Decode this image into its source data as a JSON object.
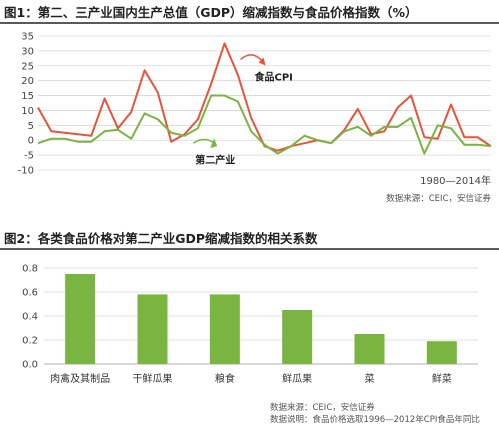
{
  "figure1": {
    "title": "图1：第二、三产业国内生产总值（GDP）缩减指数与食品价格指数（%）",
    "source": "数据来源：CEIC，安信证券"
  },
  "figure2": {
    "title": "图2：各类食品价格对第二产业GDP缩减指数的相关系数",
    "source": "数据来源：CEIC，安信证券",
    "note": "数据说明：食品价格选取1996—2012年CPI食品年同比"
  },
  "chart_data": [
    {
      "type": "line",
      "title": "第二、三产业国内生产总值（GDP）缩减指数与食品价格指数（%）",
      "x": [
        1980,
        1981,
        1982,
        1983,
        1984,
        1985,
        1986,
        1987,
        1988,
        1989,
        1990,
        1991,
        1992,
        1993,
        1994,
        1995,
        1996,
        1997,
        1998,
        1999,
        2000,
        2001,
        2002,
        2003,
        2004,
        2005,
        2006,
        2007,
        2008,
        2009,
        2010,
        2011,
        2012,
        2013,
        2014
      ],
      "xlabel": "1980—2014年",
      "ylim": [
        -10,
        35
      ],
      "yticks": [
        -10,
        -5,
        0,
        5,
        10,
        15,
        20,
        25,
        30,
        35
      ],
      "colors": {
        "food": "#e8543a",
        "secondary": "#7ab441"
      },
      "series": [
        {
          "name": "食品CPI",
          "values": [
            11,
            3,
            2.5,
            2,
            1.5,
            14,
            4,
            9.5,
            23.5,
            16,
            -0.5,
            2,
            7,
            19,
            32.5,
            22,
            7.5,
            -2,
            -3.5,
            -2,
            -1,
            0,
            -1,
            3.5,
            10.5,
            2,
            3,
            11,
            15,
            1,
            0.5,
            12,
            1,
            1,
            -2
          ]
        },
        {
          "name": "第二产业",
          "values": [
            -1,
            0.5,
            0.5,
            -0.5,
            -0.5,
            3,
            3.5,
            0.5,
            9,
            7,
            2.5,
            1.5,
            4,
            15,
            15,
            13,
            3,
            -1.5,
            -4.5,
            -2,
            1.5,
            0,
            -1,
            3,
            4.5,
            1.5,
            4.5,
            4.5,
            7.5,
            -4.5,
            5,
            4,
            -1.5,
            -1.5,
            -2
          ]
        }
      ]
    },
    {
      "type": "bar",
      "title": "各类食品价格对第二产业GDP缩减指数的相关系数",
      "categories": [
        "肉禽及其制品",
        "干鲜瓜果",
        "粮食",
        "鲜瓜果",
        "菜",
        "鲜菜"
      ],
      "values": [
        0.75,
        0.58,
        0.58,
        0.45,
        0.25,
        0.19
      ],
      "ylim": [
        0,
        0.8
      ],
      "yticks": [
        0.0,
        0.2,
        0.4,
        0.6,
        0.8
      ],
      "color": "#7ab441"
    }
  ]
}
